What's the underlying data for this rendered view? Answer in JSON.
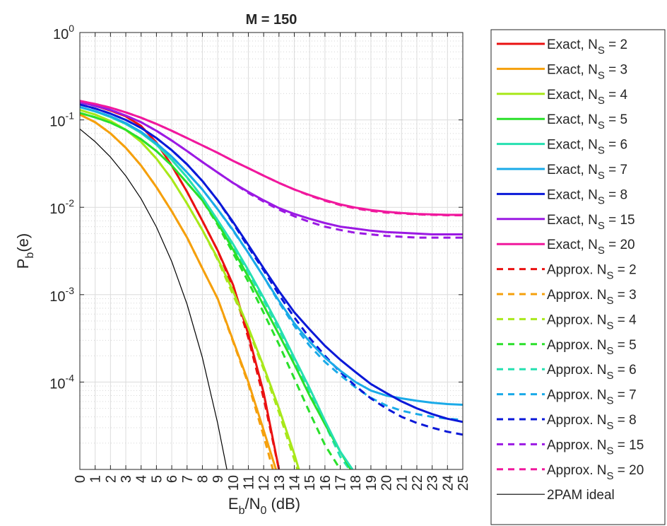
{
  "chart_data": {
    "type": "line",
    "title": "M = 150",
    "xlabel": {
      "main": "E",
      "sub1": "b",
      "mid": "/N",
      "sub2": "0",
      "tail": " (dB)"
    },
    "ylabel": {
      "main": "P",
      "sub": "b",
      "tail": "(e)"
    },
    "xlim": [
      0,
      25
    ],
    "ylim": [
      1e-05,
      1
    ],
    "yscale": "log",
    "grid": true,
    "minor_grid": true,
    "legend_position": "outside-right",
    "x_ticks": [
      "0",
      "1",
      "2",
      "3",
      "4",
      "5",
      "6",
      "7",
      "8",
      "9",
      "10",
      "11",
      "12",
      "13",
      "14",
      "15",
      "16",
      "17",
      "18",
      "19",
      "20",
      "21",
      "22",
      "23",
      "24",
      "25"
    ],
    "y_ticks": [
      {
        "value": 1,
        "base": "10",
        "exp": "0"
      },
      {
        "value": 0.1,
        "base": "10",
        "exp": "-1"
      },
      {
        "value": 0.01,
        "base": "10",
        "exp": "-2"
      },
      {
        "value": 0.001,
        "base": "10",
        "exp": "-3"
      },
      {
        "value": 0.0001,
        "base": "10",
        "exp": "-4"
      }
    ],
    "series": [
      {
        "legend": {
          "main": "Exact,  N",
          "sub": "S",
          "tail": " = 2"
        },
        "color": "#ea1111",
        "style": "solid",
        "x": [
          0,
          1,
          2,
          3,
          4,
          5,
          6,
          7,
          8,
          9,
          10,
          11,
          12,
          13
        ],
        "y": [
          0.16,
          0.145,
          0.128,
          0.11,
          0.085,
          0.055,
          0.03,
          0.015,
          0.007,
          0.0032,
          0.0013,
          0.00035,
          7.5e-05,
          1e-05
        ]
      },
      {
        "legend": {
          "main": "Exact,  N",
          "sub": "S",
          "tail": " = 3"
        },
        "color": "#f5a00c",
        "style": "solid",
        "x": [
          0,
          1,
          2,
          3,
          4,
          5,
          6,
          7,
          8,
          9,
          10,
          11,
          12,
          12.8
        ],
        "y": [
          0.115,
          0.094,
          0.07,
          0.048,
          0.03,
          0.017,
          0.009,
          0.0045,
          0.002,
          0.0009,
          0.0003,
          0.0001,
          2.8e-05,
          1e-05
        ]
      },
      {
        "legend": {
          "main": "Exact,  N",
          "sub": "S",
          "tail": " = 4"
        },
        "color": "#a8e81a",
        "style": "solid",
        "x": [
          0,
          1,
          2,
          3,
          4,
          5,
          6,
          7,
          8,
          9,
          10,
          11,
          12,
          13,
          14,
          14.3
        ],
        "y": [
          0.13,
          0.115,
          0.097,
          0.077,
          0.056,
          0.036,
          0.021,
          0.011,
          0.0055,
          0.0026,
          0.0011,
          0.00042,
          0.00015,
          5e-05,
          1.5e-05,
          1e-05
        ]
      },
      {
        "legend": {
          "main": "Exact,  N",
          "sub": "S",
          "tail": " = 5"
        },
        "color": "#2ae02a",
        "style": "solid",
        "x": [
          0,
          1,
          2,
          3,
          4,
          5,
          6,
          7,
          8,
          9,
          10,
          11,
          12,
          13,
          14,
          15,
          16,
          17,
          18
        ],
        "y": [
          0.12,
          0.107,
          0.093,
          0.077,
          0.06,
          0.044,
          0.03,
          0.019,
          0.012,
          0.0066,
          0.0033,
          0.0016,
          0.00075,
          0.00035,
          0.00016,
          7e-05,
          3.3e-05,
          1.6e-05,
          8e-06
        ]
      },
      {
        "legend": {
          "main": "Exact,  N",
          "sub": "S",
          "tail": " = 6"
        },
        "color": "#25e0b0",
        "style": "solid",
        "x": [
          0,
          1,
          2,
          3,
          4,
          5,
          6,
          7,
          8,
          9,
          10,
          11,
          12,
          13,
          14,
          15,
          16,
          17,
          17.8
        ],
        "y": [
          0.14,
          0.125,
          0.108,
          0.09,
          0.071,
          0.052,
          0.035,
          0.022,
          0.013,
          0.0071,
          0.0038,
          0.0019,
          0.00092,
          0.00043,
          0.00019,
          8.5e-05,
          3.6e-05,
          1.6e-05,
          1e-05
        ]
      },
      {
        "legend": {
          "main": "Exact,  N",
          "sub": "S",
          "tail": " = 7"
        },
        "color": "#1aaae8",
        "style": "solid",
        "x": [
          0,
          1,
          2,
          3,
          4,
          5,
          6,
          7,
          8,
          9,
          10,
          11,
          12,
          13,
          14,
          15,
          16,
          17,
          18,
          19,
          20,
          21,
          22,
          23,
          24,
          25
        ],
        "y": [
          0.14,
          0.126,
          0.11,
          0.092,
          0.073,
          0.054,
          0.038,
          0.025,
          0.016,
          0.0095,
          0.0055,
          0.003,
          0.0016,
          0.00085,
          0.00047,
          0.00029,
          0.00019,
          0.000135,
          0.0001,
          8e-05,
          7e-05,
          6.5e-05,
          6.1e-05,
          5.8e-05,
          5.6e-05,
          5.5e-05
        ]
      },
      {
        "legend": {
          "main": "Exact,  N",
          "sub": "S",
          "tail": " = 8"
        },
        "color": "#0a18d8",
        "style": "solid",
        "x": [
          0,
          1,
          2,
          3,
          4,
          5,
          6,
          7,
          8,
          9,
          10,
          11,
          12,
          13,
          14,
          15,
          16,
          17,
          18,
          19,
          20,
          21,
          22,
          23,
          24,
          25
        ],
        "y": [
          0.15,
          0.135,
          0.118,
          0.1,
          0.081,
          0.062,
          0.045,
          0.031,
          0.02,
          0.012,
          0.0068,
          0.0037,
          0.002,
          0.0011,
          0.00063,
          0.0004,
          0.00026,
          0.00018,
          0.00013,
          9.5e-05,
          7.5e-05,
          6e-05,
          5e-05,
          4.3e-05,
          3.8e-05,
          3.5e-05
        ]
      },
      {
        "legend": {
          "main": "Exact,  N",
          "sub": "S",
          "tail": " = 15"
        },
        "color": "#9b19e3",
        "style": "solid",
        "x": [
          0,
          1,
          2,
          3,
          4,
          5,
          6,
          7,
          8,
          9,
          10,
          11,
          12,
          13,
          14,
          15,
          16,
          17,
          18,
          19,
          20,
          21,
          22,
          23,
          24,
          25
        ],
        "y": [
          0.16,
          0.145,
          0.13,
          0.112,
          0.094,
          0.075,
          0.058,
          0.044,
          0.033,
          0.025,
          0.019,
          0.015,
          0.012,
          0.0098,
          0.0084,
          0.0074,
          0.0066,
          0.006,
          0.0057,
          0.0054,
          0.0052,
          0.0051,
          0.005,
          0.0049,
          0.0049,
          0.0049
        ]
      },
      {
        "legend": {
          "main": "Exact,  N",
          "sub": "S",
          "tail": " = 20"
        },
        "color": "#f0189d",
        "style": "solid",
        "x": [
          0,
          1,
          2,
          3,
          4,
          5,
          6,
          7,
          8,
          9,
          10,
          11,
          12,
          13,
          14,
          15,
          16,
          17,
          18,
          19,
          20,
          21,
          22,
          23,
          24,
          25
        ],
        "y": [
          0.165,
          0.152,
          0.138,
          0.122,
          0.106,
          0.09,
          0.075,
          0.062,
          0.051,
          0.042,
          0.034,
          0.028,
          0.023,
          0.019,
          0.016,
          0.0138,
          0.0121,
          0.0108,
          0.0099,
          0.0093,
          0.0089,
          0.0086,
          0.0084,
          0.0083,
          0.0082,
          0.0082
        ]
      },
      {
        "legend": {
          "main": "Approx.  N",
          "sub": "S",
          "tail": " = 2"
        },
        "color": "#ea1111",
        "style": "dashed",
        "x": [
          0,
          1,
          2,
          3,
          4,
          5,
          6,
          7,
          8,
          9,
          10,
          11,
          12,
          13
        ],
        "y": [
          0.16,
          0.145,
          0.128,
          0.11,
          0.085,
          0.055,
          0.03,
          0.015,
          0.007,
          0.0032,
          0.0012,
          0.00032,
          6.5e-05,
          1e-05
        ]
      },
      {
        "legend": {
          "main": "Approx.  N",
          "sub": "S",
          "tail": " = 3"
        },
        "color": "#f5a00c",
        "style": "dashed",
        "x": [
          0,
          1,
          2,
          3,
          4,
          5,
          6,
          7,
          8,
          9,
          10,
          11,
          12,
          12.6
        ],
        "y": [
          0.115,
          0.094,
          0.07,
          0.048,
          0.03,
          0.017,
          0.009,
          0.0045,
          0.002,
          0.0009,
          0.00029,
          9.5e-05,
          2.4e-05,
          1e-05
        ]
      },
      {
        "legend": {
          "main": "Approx.  N",
          "sub": "S",
          "tail": " = 4"
        },
        "color": "#a8e81a",
        "style": "dashed",
        "x": [
          0,
          1,
          2,
          3,
          4,
          5,
          6,
          7,
          8,
          9,
          10,
          11,
          12,
          13,
          14,
          14.2
        ],
        "y": [
          0.13,
          0.115,
          0.097,
          0.077,
          0.056,
          0.036,
          0.021,
          0.011,
          0.0055,
          0.0025,
          0.001,
          0.0004,
          0.00014,
          4.5e-05,
          1.3e-05,
          1e-05
        ]
      },
      {
        "legend": {
          "main": "Approx.  N",
          "sub": "S",
          "tail": " = 5"
        },
        "color": "#2ae02a",
        "style": "dashed",
        "x": [
          0,
          1,
          2,
          3,
          4,
          5,
          6,
          7,
          8,
          9,
          10,
          11,
          12,
          13,
          14,
          15,
          16,
          17
        ],
        "y": [
          0.12,
          0.107,
          0.093,
          0.077,
          0.06,
          0.044,
          0.03,
          0.019,
          0.012,
          0.0063,
          0.003,
          0.0014,
          0.00062,
          0.00027,
          0.00011,
          4.5e-05,
          1.9e-05,
          1e-05
        ]
      },
      {
        "legend": {
          "main": "Approx.  N",
          "sub": "S",
          "tail": " = 6"
        },
        "color": "#25e0b0",
        "style": "dashed",
        "x": [
          0,
          1,
          2,
          3,
          4,
          5,
          6,
          7,
          8,
          9,
          10,
          11,
          12,
          13,
          14,
          15,
          16,
          17,
          17.6
        ],
        "y": [
          0.14,
          0.125,
          0.108,
          0.09,
          0.071,
          0.052,
          0.035,
          0.022,
          0.013,
          0.007,
          0.0036,
          0.0018,
          0.00086,
          0.0004,
          0.00018,
          7.8e-05,
          3.3e-05,
          1.4e-05,
          1e-05
        ]
      },
      {
        "legend": {
          "main": "Approx.  N",
          "sub": "S",
          "tail": " = 7"
        },
        "color": "#1aaae8",
        "style": "dashed",
        "x": [
          0,
          1,
          2,
          3,
          4,
          5,
          6,
          7,
          8,
          9,
          10,
          11,
          12,
          13,
          14,
          15,
          16,
          17,
          18,
          19,
          20,
          21,
          22,
          23,
          24,
          25
        ],
        "y": [
          0.14,
          0.126,
          0.11,
          0.092,
          0.073,
          0.054,
          0.038,
          0.025,
          0.016,
          0.0095,
          0.0054,
          0.003,
          0.0016,
          0.00082,
          0.00044,
          0.00026,
          0.00017,
          0.00012,
          8.7e-05,
          6.6e-05,
          5.4e-05,
          4.7e-05,
          4.3e-05,
          4e-05,
          3.8e-05,
          3.7e-05
        ]
      },
      {
        "legend": {
          "main": "Approx.  N",
          "sub": "S",
          "tail": " = 8"
        },
        "color": "#0a18d8",
        "style": "dashed",
        "x": [
          0,
          1,
          2,
          3,
          4,
          5,
          6,
          7,
          8,
          9,
          10,
          11,
          12,
          13,
          14,
          15,
          16,
          17,
          18,
          19,
          20,
          21,
          22,
          23,
          24,
          25
        ],
        "y": [
          0.15,
          0.135,
          0.118,
          0.1,
          0.081,
          0.062,
          0.045,
          0.031,
          0.02,
          0.012,
          0.0066,
          0.0035,
          0.0019,
          0.001,
          0.00055,
          0.00032,
          0.0002,
          0.00013,
          9e-05,
          6.5e-05,
          5e-05,
          4e-05,
          3.4e-05,
          3e-05,
          2.7e-05,
          2.5e-05
        ]
      },
      {
        "legend": {
          "main": "Approx.  N",
          "sub": "S",
          "tail": " = 15"
        },
        "color": "#9b19e3",
        "style": "dashed",
        "x": [
          0,
          1,
          2,
          3,
          4,
          5,
          6,
          7,
          8,
          9,
          10,
          11,
          12,
          13,
          14,
          15,
          16,
          17,
          18,
          19,
          20,
          21,
          22,
          23,
          24,
          25
        ],
        "y": [
          0.16,
          0.145,
          0.13,
          0.112,
          0.094,
          0.075,
          0.058,
          0.044,
          0.033,
          0.025,
          0.019,
          0.0146,
          0.0116,
          0.0094,
          0.0079,
          0.0068,
          0.006,
          0.0055,
          0.0051,
          0.0049,
          0.0047,
          0.0046,
          0.0045,
          0.0045,
          0.0045,
          0.0045
        ]
      },
      {
        "legend": {
          "main": "Approx.  N",
          "sub": "S",
          "tail": " = 20"
        },
        "color": "#f0189d",
        "style": "dashed",
        "x": [
          0,
          1,
          2,
          3,
          4,
          5,
          6,
          7,
          8,
          9,
          10,
          11,
          12,
          13,
          14,
          15,
          16,
          17,
          18,
          19,
          20,
          21,
          22,
          23,
          24,
          25
        ],
        "y": [
          0.165,
          0.152,
          0.138,
          0.122,
          0.106,
          0.09,
          0.075,
          0.062,
          0.051,
          0.042,
          0.034,
          0.028,
          0.023,
          0.019,
          0.016,
          0.0136,
          0.0119,
          0.0106,
          0.0097,
          0.0091,
          0.0087,
          0.0085,
          0.0083,
          0.0082,
          0.0081,
          0.0081
        ]
      },
      {
        "legend": {
          "main": "2PAM ideal",
          "sub": "",
          "tail": ""
        },
        "color": "#000000",
        "style": "thin",
        "x": [
          0,
          1,
          2,
          3,
          4,
          5,
          6,
          7,
          8,
          9,
          9.6
        ],
        "y": [
          0.0786,
          0.0563,
          0.0375,
          0.0229,
          0.0125,
          0.00595,
          0.00239,
          0.000773,
          0.000191,
          3.36e-05,
          1e-05
        ]
      }
    ]
  }
}
